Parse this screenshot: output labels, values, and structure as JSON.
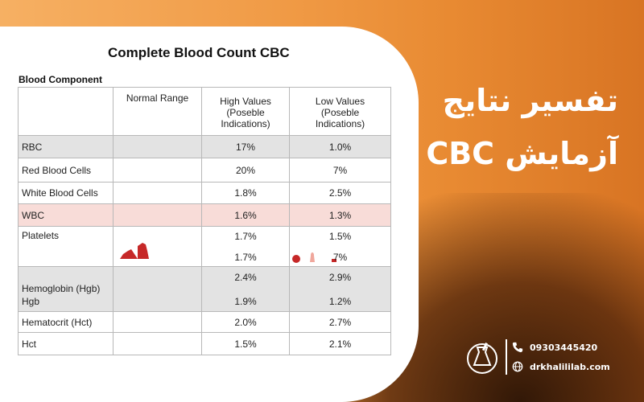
{
  "title": "Complete Blood Count CBC",
  "section_label": "Blood Component",
  "table": {
    "headers": {
      "component": "",
      "normal": "Normal Range",
      "high_1": "High Values",
      "high_2": "(Poseble",
      "high_3": "Indications)",
      "low_1": "Low Values",
      "low_2": "(Poseble",
      "low_3": "Indications)"
    },
    "rows": [
      {
        "name": "RBC",
        "high": "17%",
        "low": "1.0%"
      },
      {
        "name": "Red Blood Cells",
        "high": "20%",
        "low": "7%"
      },
      {
        "name": "White Blood Cells",
        "high": "1.8%",
        "low": "2.5%"
      },
      {
        "name": "WBC",
        "high": "1.6%",
        "low": "1.3%"
      },
      {
        "name": "Platelets",
        "high": "1.7%",
        "low": "1.5%",
        "high_b": "1.7%",
        "low_b": "7%"
      },
      {
        "name": "Hemoglobin (Hgb)",
        "name_b": "Hgb",
        "high": "2.4%",
        "low": "2.9%",
        "high_b": "1.9%",
        "low_b": "1.2%"
      },
      {
        "name": "Hematocrit (Hct)",
        "high": "2.0%",
        "low": "2.7%"
      },
      {
        "name": "Hct",
        "high": "1.5%",
        "low": "2.1%"
      }
    ]
  },
  "headline": {
    "line1": "تفسیر نتایج",
    "line2": "آزمایش CBC"
  },
  "contact": {
    "phone": "09303445420",
    "website": "drkhalililab.com"
  },
  "icons": {
    "phone": "phone-icon",
    "globe": "globe-icon",
    "logo": "lab-logo"
  },
  "colors": {
    "accent_red": "#c62828",
    "pink_row": "#f8dcd8",
    "shade_row": "#e3e3e3"
  }
}
